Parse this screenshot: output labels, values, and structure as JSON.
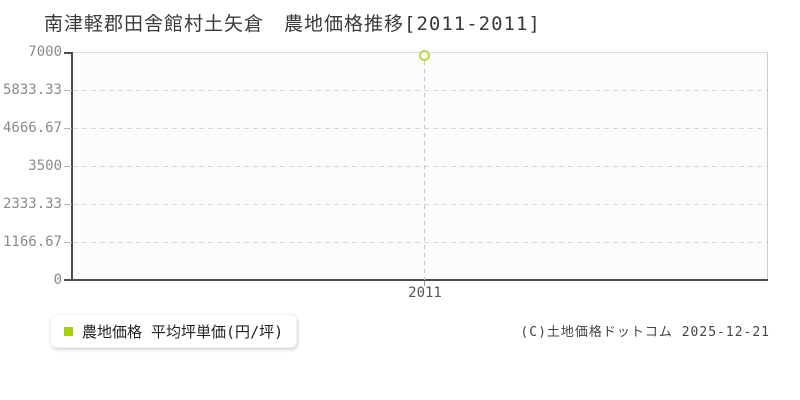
{
  "chart": {
    "title": "南津軽郡田舎館村土矢倉　農地価格推移[2011-2011]",
    "y_axis": {
      "ticks": [
        "7000",
        "5833.33",
        "4666.67",
        "3500",
        "2333.33",
        "1166.67",
        "0"
      ]
    },
    "x_axis": {
      "ticks": [
        "2011"
      ]
    },
    "legend": {
      "label": "農地価格 平均坪単価(円/坪)",
      "marker_color": "#a6d400"
    },
    "point": {
      "stroke_color": "#b5da44",
      "fill_color": "#ffffff"
    },
    "colors": {
      "axis": "#4d4d4d",
      "gridline": "#d8d8d8",
      "plot_background": "#fcfcfc",
      "tick_label": "#8a8a8a"
    },
    "copyright": "(C)土地価格ドットコム 2025-12-21"
  },
  "chart_data": {
    "type": "line",
    "title": "南津軽郡田舎館村土矢倉 農地価格推移[2011-2011]",
    "categories": [
      "2011"
    ],
    "x": [
      2011
    ],
    "series": [
      {
        "name": "農地価格 平均坪単価(円/坪)",
        "values": [
          6900
        ]
      }
    ],
    "xlabel": "",
    "ylabel": "",
    "ylim": [
      0,
      7000
    ],
    "y_ticks": [
      0,
      1166.67,
      2333.33,
      3500,
      4666.67,
      5833.33,
      7000
    ],
    "grid": true,
    "gridline_style": "dashed",
    "marker": "open-circle",
    "point_guide": "vertical-dashed-line",
    "legend_position": "bottom-left-below-plot"
  }
}
